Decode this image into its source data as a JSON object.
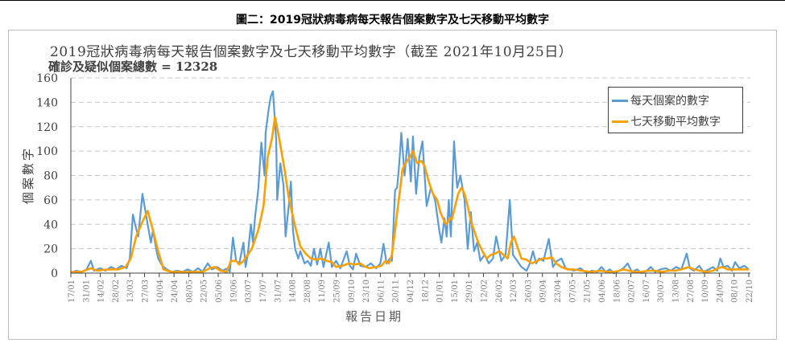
{
  "caption": "圖二：2019冠狀病毒病每天報告個案數字及七天移動平均數字",
  "chart_data": {
    "type": "line",
    "title": "2019冠狀病毒病每天報告個案數字及七天移動平均數字（截至 2021年10月25日）",
    "subtitle": "確診及疑似個案總數 = 12328",
    "xlabel": "報告日期",
    "ylabel": "個案數字",
    "x_unit": "days since 17/01/2020",
    "xlim": [
      0,
      644
    ],
    "ylim": [
      0,
      160
    ],
    "yticks": [
      0,
      20,
      40,
      60,
      80,
      100,
      120,
      140,
      160
    ],
    "xtick_labels": [
      "17/01",
      "31/01",
      "14/02",
      "28/02",
      "13/03",
      "27/03",
      "10/04",
      "24/04",
      "08/05",
      "22/05",
      "05/06",
      "19/06",
      "03/07",
      "17/07",
      "31/07",
      "14/08",
      "28/08",
      "11/09",
      "25/09",
      "09/10",
      "23/10",
      "06/11",
      "20/11",
      "04/12",
      "18/12",
      "01/01",
      "15/01",
      "29/01",
      "12/02",
      "26/02",
      "12/03",
      "26/03",
      "09/04",
      "23/04",
      "07/05",
      "21/05",
      "04/06",
      "18/06",
      "02/07",
      "16/07",
      "30/07",
      "13/08",
      "27/08",
      "10/09",
      "24/09",
      "08/10",
      "22/10"
    ],
    "xtick_step_days": 14,
    "grid": true,
    "legend_position": "top-right",
    "series": [
      {
        "name": "每天個案的數字",
        "color": "#5b9bd5",
        "points": [
          [
            0,
            0
          ],
          [
            5,
            2
          ],
          [
            10,
            1
          ],
          [
            15,
            3
          ],
          [
            19,
            10
          ],
          [
            22,
            2
          ],
          [
            28,
            4
          ],
          [
            33,
            2
          ],
          [
            38,
            5
          ],
          [
            43,
            3
          ],
          [
            48,
            6
          ],
          [
            53,
            4
          ],
          [
            56,
            12
          ],
          [
            59,
            48
          ],
          [
            61,
            40
          ],
          [
            64,
            30
          ],
          [
            68,
            65
          ],
          [
            70,
            55
          ],
          [
            73,
            40
          ],
          [
            76,
            25
          ],
          [
            78,
            35
          ],
          [
            81,
            20
          ],
          [
            83,
            12
          ],
          [
            87,
            6
          ],
          [
            91,
            3
          ],
          [
            96,
            1
          ],
          [
            101,
            2
          ],
          [
            106,
            1
          ],
          [
            111,
            3
          ],
          [
            116,
            1
          ],
          [
            121,
            4
          ],
          [
            125,
            1
          ],
          [
            130,
            8
          ],
          [
            134,
            3
          ],
          [
            139,
            5
          ],
          [
            144,
            2
          ],
          [
            149,
            4
          ],
          [
            151,
            1
          ],
          [
            154,
            29
          ],
          [
            157,
            10
          ],
          [
            160,
            8
          ],
          [
            164,
            25
          ],
          [
            166,
            5
          ],
          [
            168,
            15
          ],
          [
            171,
            40
          ],
          [
            173,
            25
          ],
          [
            175,
            46
          ],
          [
            178,
            68
          ],
          [
            181,
            107
          ],
          [
            184,
            80
          ],
          [
            185,
            115
          ],
          [
            188,
            135
          ],
          [
            190,
            145
          ],
          [
            192,
            149
          ],
          [
            195,
            110
          ],
          [
            196,
            60
          ],
          [
            199,
            90
          ],
          [
            202,
            72
          ],
          [
            204,
            30
          ],
          [
            207,
            55
          ],
          [
            209,
            75
          ],
          [
            211,
            35
          ],
          [
            213,
            20
          ],
          [
            216,
            12
          ],
          [
            218,
            18
          ],
          [
            222,
            8
          ],
          [
            225,
            10
          ],
          [
            228,
            6
          ],
          [
            231,
            20
          ],
          [
            234,
            7
          ],
          [
            237,
            20
          ],
          [
            240,
            5
          ],
          [
            245,
            25
          ],
          [
            248,
            5
          ],
          [
            252,
            10
          ],
          [
            256,
            4
          ],
          [
            262,
            18
          ],
          [
            265,
            6
          ],
          [
            268,
            3
          ],
          [
            271,
            16
          ],
          [
            275,
            6
          ],
          [
            280,
            5
          ],
          [
            285,
            8
          ],
          [
            290,
            4
          ],
          [
            294,
            8
          ],
          [
            297,
            24
          ],
          [
            300,
            8
          ],
          [
            303,
            12
          ],
          [
            305,
            10
          ],
          [
            308,
            68
          ],
          [
            310,
            70
          ],
          [
            312,
            90
          ],
          [
            314,
            115
          ],
          [
            317,
            80
          ],
          [
            320,
            110
          ],
          [
            323,
            75
          ],
          [
            325,
            112
          ],
          [
            328,
            65
          ],
          [
            331,
            95
          ],
          [
            334,
            108
          ],
          [
            338,
            55
          ],
          [
            342,
            70
          ],
          [
            346,
            60
          ],
          [
            350,
            35
          ],
          [
            352,
            25
          ],
          [
            355,
            45
          ],
          [
            357,
            30
          ],
          [
            359,
            60
          ],
          [
            361,
            30
          ],
          [
            364,
            108
          ],
          [
            367,
            70
          ],
          [
            370,
            80
          ],
          [
            374,
            60
          ],
          [
            377,
            20
          ],
          [
            380,
            50
          ],
          [
            383,
            18
          ],
          [
            386,
            25
          ],
          [
            389,
            10
          ],
          [
            393,
            15
          ],
          [
            397,
            8
          ],
          [
            401,
            12
          ],
          [
            404,
            30
          ],
          [
            409,
            10
          ],
          [
            413,
            15
          ],
          [
            417,
            60
          ],
          [
            420,
            15
          ],
          [
            424,
            10
          ],
          [
            428,
            5
          ],
          [
            433,
            2
          ],
          [
            436,
            8
          ],
          [
            439,
            18
          ],
          [
            442,
            8
          ],
          [
            445,
            12
          ],
          [
            449,
            10
          ],
          [
            454,
            28
          ],
          [
            458,
            5
          ],
          [
            462,
            10
          ],
          [
            466,
            12
          ],
          [
            470,
            4
          ],
          [
            474,
            3
          ],
          [
            478,
            2
          ],
          [
            484,
            4
          ],
          [
            490,
            0
          ],
          [
            495,
            2
          ],
          [
            500,
            1
          ],
          [
            504,
            5
          ],
          [
            508,
            1
          ],
          [
            512,
            3
          ],
          [
            516,
            0
          ],
          [
            521,
            2
          ],
          [
            525,
            4
          ],
          [
            529,
            8
          ],
          [
            533,
            1
          ],
          [
            538,
            3
          ],
          [
            542,
            0
          ],
          [
            547,
            2
          ],
          [
            551,
            5
          ],
          [
            555,
            1
          ],
          [
            560,
            3
          ],
          [
            565,
            4
          ],
          [
            570,
            2
          ],
          [
            575,
            5
          ],
          [
            580,
            3
          ],
          [
            585,
            16
          ],
          [
            588,
            4
          ],
          [
            592,
            2
          ],
          [
            597,
            6
          ],
          [
            601,
            1
          ],
          [
            606,
            3
          ],
          [
            610,
            5
          ],
          [
            614,
            2
          ],
          [
            617,
            12
          ],
          [
            620,
            5
          ],
          [
            624,
            6
          ],
          [
            628,
            2
          ],
          [
            631,
            9
          ],
          [
            635,
            4
          ],
          [
            640,
            6
          ],
          [
            644,
            3
          ]
        ]
      },
      {
        "name": "七天移動平均數字",
        "color": "#ffa000",
        "points": [
          [
            0,
            1
          ],
          [
            10,
            1
          ],
          [
            19,
            4
          ],
          [
            25,
            2
          ],
          [
            35,
            3
          ],
          [
            45,
            3
          ],
          [
            52,
            5
          ],
          [
            57,
            12
          ],
          [
            62,
            30
          ],
          [
            68,
            42
          ],
          [
            73,
            51
          ],
          [
            78,
            35
          ],
          [
            83,
            18
          ],
          [
            88,
            3
          ],
          [
            95,
            1
          ],
          [
            110,
            1
          ],
          [
            125,
            1
          ],
          [
            132,
            4
          ],
          [
            137,
            5
          ],
          [
            142,
            2
          ],
          [
            148,
            1
          ],
          [
            152,
            10
          ],
          [
            157,
            10
          ],
          [
            160,
            7
          ],
          [
            164,
            10
          ],
          [
            168,
            15
          ],
          [
            172,
            20
          ],
          [
            178,
            35
          ],
          [
            183,
            55
          ],
          [
            187,
            95
          ],
          [
            191,
            110
          ],
          [
            194,
            128
          ],
          [
            198,
            110
          ],
          [
            203,
            85
          ],
          [
            207,
            62
          ],
          [
            210,
            50
          ],
          [
            214,
            35
          ],
          [
            218,
            22
          ],
          [
            223,
            16
          ],
          [
            228,
            12
          ],
          [
            233,
            11
          ],
          [
            238,
            12
          ],
          [
            243,
            10
          ],
          [
            248,
            9
          ],
          [
            252,
            5
          ],
          [
            258,
            6
          ],
          [
            264,
            8
          ],
          [
            270,
            7
          ],
          [
            275,
            8
          ],
          [
            280,
            5
          ],
          [
            284,
            4
          ],
          [
            290,
            5
          ],
          [
            295,
            6
          ],
          [
            299,
            10
          ],
          [
            302,
            8
          ],
          [
            305,
            15
          ],
          [
            308,
            35
          ],
          [
            310,
            50
          ],
          [
            313,
            70
          ],
          [
            315,
            85
          ],
          [
            318,
            90
          ],
          [
            322,
            95
          ],
          [
            325,
            100
          ],
          [
            329,
            90
          ],
          [
            333,
            92
          ],
          [
            336,
            88
          ],
          [
            340,
            75
          ],
          [
            344,
            65
          ],
          [
            348,
            60
          ],
          [
            351,
            50
          ],
          [
            355,
            42
          ],
          [
            357,
            40
          ],
          [
            360,
            45
          ],
          [
            362,
            44
          ],
          [
            365,
            55
          ],
          [
            368,
            65
          ],
          [
            371,
            70
          ],
          [
            374,
            65
          ],
          [
            377,
            55
          ],
          [
            380,
            43
          ],
          [
            383,
            35
          ],
          [
            387,
            25
          ],
          [
            391,
            18
          ],
          [
            395,
            12
          ],
          [
            399,
            15
          ],
          [
            403,
            16
          ],
          [
            407,
            18
          ],
          [
            411,
            15
          ],
          [
            415,
            12
          ],
          [
            418,
            25
          ],
          [
            421,
            30
          ],
          [
            424,
            22
          ],
          [
            428,
            12
          ],
          [
            433,
            11
          ],
          [
            438,
            8
          ],
          [
            443,
            10
          ],
          [
            448,
            12
          ],
          [
            453,
            12
          ],
          [
            457,
            13
          ],
          [
            461,
            8
          ],
          [
            466,
            5
          ],
          [
            472,
            3
          ],
          [
            478,
            3
          ],
          [
            485,
            2
          ],
          [
            494,
            1
          ],
          [
            504,
            2
          ],
          [
            510,
            1
          ],
          [
            516,
            1
          ],
          [
            521,
            2
          ],
          [
            525,
            3
          ],
          [
            530,
            2
          ],
          [
            536,
            1
          ],
          [
            542,
            1
          ],
          [
            548,
            2
          ],
          [
            555,
            2
          ],
          [
            561,
            1
          ],
          [
            568,
            2
          ],
          [
            574,
            2
          ],
          [
            580,
            3
          ],
          [
            587,
            5
          ],
          [
            592,
            3
          ],
          [
            598,
            2
          ],
          [
            604,
            1
          ],
          [
            610,
            2
          ],
          [
            615,
            4
          ],
          [
            619,
            5
          ],
          [
            624,
            3
          ],
          [
            631,
            3
          ],
          [
            638,
            3
          ],
          [
            644,
            3
          ]
        ]
      }
    ]
  }
}
